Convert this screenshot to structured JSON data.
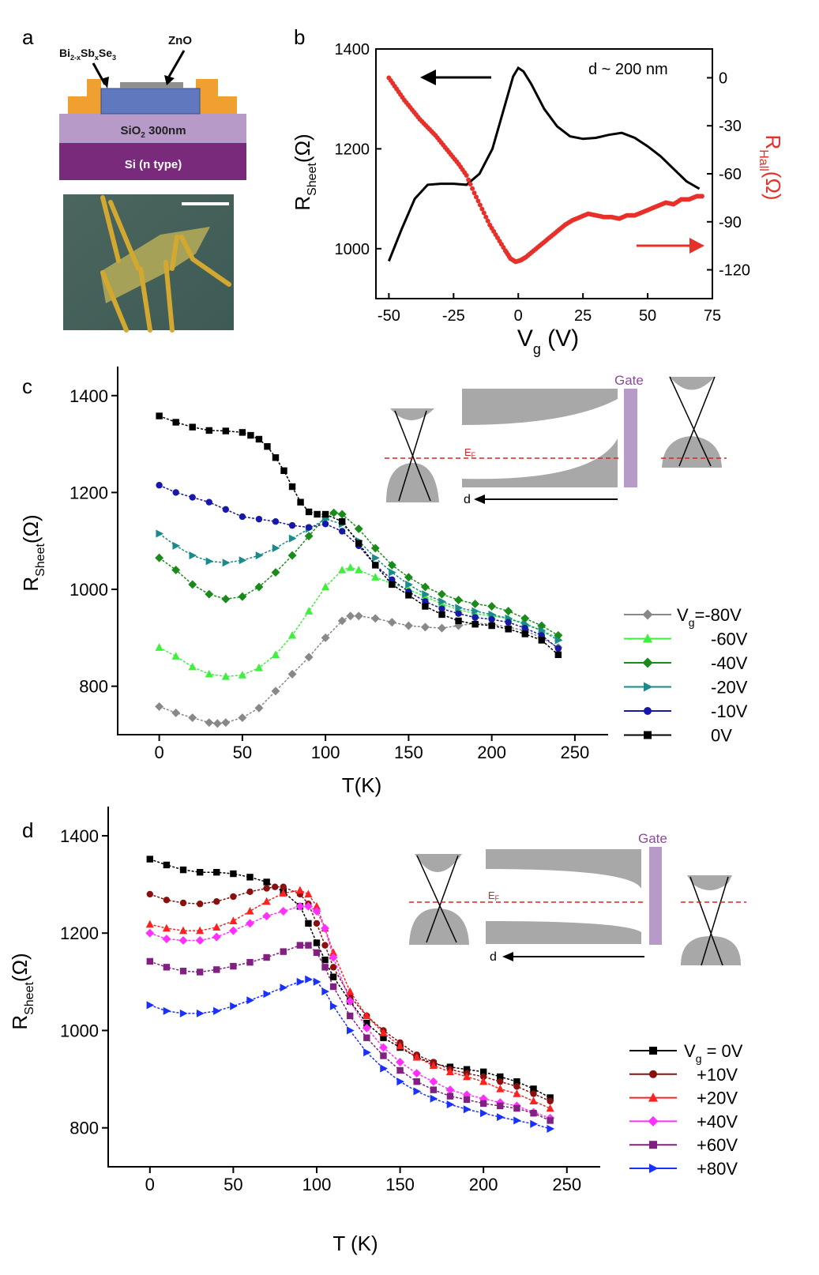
{
  "figure": {
    "panel_labels": [
      "a",
      "b",
      "c",
      "d"
    ]
  },
  "panel_a": {
    "schematic": {
      "material_label_main": "Bi",
      "material_label_sub1": "2-x",
      "material_label_mid": "Sb",
      "material_label_sub2": "x",
      "material_label_end": "Se",
      "material_label_sub3": "3",
      "zno_label": "ZnO",
      "sio2_label_pre": "SiO",
      "sio2_label_sub": "2",
      "sio2_label_post": " 300nm",
      "si_label": "Si (n type)",
      "colors": {
        "electrode": "#f0a030",
        "channel": "#5f78c0",
        "zno": "#8f8f8f",
        "sio2": "#b89ac8",
        "si": "#7a2a7a"
      }
    },
    "micrograph": {
      "background": "#4e6a62",
      "flake": "#b0a858",
      "leads": "#d2a830",
      "scale_bar": "#ffffff"
    }
  },
  "chart_data": [
    {
      "panel": "b",
      "type": "line",
      "annotation": "d ~ 200 nm",
      "xlabel_main": "V",
      "xlabel_sub": "g",
      "xlabel_unit": " (V)",
      "ylabel_main": "R",
      "ylabel_sub": "Sheet",
      "ylabel_unit": "(Ω)",
      "y2label_main": "R",
      "y2label_sub": "Hall",
      "y2label_unit": "(Ω)",
      "xlim": [
        -55,
        75
      ],
      "ylim": [
        900,
        1400
      ],
      "y2lim": [
        -138,
        18
      ],
      "xticks": [
        -50,
        -25,
        0,
        25,
        50,
        75
      ],
      "yticks": [
        1000,
        1200,
        1400
      ],
      "y2ticks": [
        0,
        -30,
        -60,
        -90,
        -120
      ],
      "series": [
        {
          "axis": "left",
          "color": "#000000",
          "style": "line",
          "x": [
            -50,
            -45,
            -40,
            -35,
            -30,
            -25,
            -20,
            -15,
            -10,
            -5,
            -2,
            0,
            2,
            5,
            10,
            15,
            20,
            25,
            30,
            35,
            40,
            45,
            50,
            55,
            60,
            65,
            70
          ],
          "y": [
            975,
            1040,
            1100,
            1128,
            1130,
            1130,
            1128,
            1150,
            1200,
            1290,
            1345,
            1362,
            1355,
            1330,
            1280,
            1245,
            1225,
            1220,
            1222,
            1228,
            1232,
            1222,
            1205,
            1185,
            1160,
            1135,
            1120
          ]
        },
        {
          "axis": "right",
          "color": "#e8302a",
          "style": "dots",
          "x": [
            -50,
            -47,
            -44,
            -41,
            -38,
            -35,
            -32,
            -29,
            -26,
            -23,
            -20,
            -17,
            -14,
            -11,
            -8,
            -5,
            -3,
            -1,
            1,
            3,
            6,
            9,
            12,
            15,
            18,
            21,
            24,
            27,
            30,
            33,
            36,
            39,
            42,
            45,
            48,
            51,
            54,
            57,
            60,
            63,
            66,
            69,
            71
          ],
          "y": [
            0,
            -7,
            -14,
            -20,
            -26,
            -31,
            -36,
            -42,
            -48,
            -54,
            -61,
            -72,
            -82,
            -92,
            -100,
            -108,
            -113,
            -115,
            -114,
            -112,
            -108,
            -104,
            -100,
            -96,
            -92,
            -89,
            -87,
            -85,
            -86,
            -87,
            -87,
            -88,
            -86,
            -86,
            -84,
            -82,
            -80,
            -78,
            -79,
            -76,
            -76,
            -74,
            -74
          ]
        }
      ]
    },
    {
      "panel": "c",
      "type": "line",
      "xlabel": "T(K)",
      "ylabel_main": "R",
      "ylabel_sub": "Sheet",
      "ylabel_unit": "(Ω)",
      "xlim": [
        -25,
        270
      ],
      "ylim": [
        700,
        1460
      ],
      "xticks": [
        0,
        50,
        100,
        150,
        200,
        250
      ],
      "yticks": [
        800,
        1000,
        1200,
        1400
      ],
      "legend_title_main": "V",
      "legend_title_sub": "g",
      "series": [
        {
          "label": "=-80V",
          "color": "#888888",
          "marker": "diamond",
          "x": [
            0,
            10,
            20,
            30,
            35,
            40,
            50,
            60,
            70,
            80,
            90,
            100,
            110,
            115,
            120,
            130,
            140,
            150,
            160,
            170,
            180,
            190,
            200,
            210,
            220,
            230,
            240
          ],
          "y": [
            758,
            745,
            735,
            725,
            723,
            725,
            735,
            755,
            790,
            825,
            860,
            900,
            935,
            945,
            945,
            940,
            932,
            925,
            922,
            920,
            925,
            930,
            928,
            922,
            915,
            900,
            880
          ]
        },
        {
          "label": "-60V",
          "color": "#3cf03c",
          "marker": "triangle-up",
          "x": [
            0,
            10,
            20,
            30,
            40,
            50,
            60,
            70,
            80,
            90,
            100,
            110,
            115,
            120,
            130,
            140,
            150,
            160,
            170,
            180,
            190,
            200,
            210,
            220,
            230,
            240
          ],
          "y": [
            880,
            862,
            840,
            825,
            820,
            823,
            838,
            865,
            905,
            955,
            1005,
            1040,
            1045,
            1040,
            1025,
            1012,
            1000,
            985,
            970,
            958,
            950,
            945,
            940,
            930,
            915,
            900
          ]
        },
        {
          "label": "-40V",
          "color": "#1a8a1a",
          "marker": "diamond",
          "x": [
            0,
            10,
            20,
            30,
            40,
            50,
            60,
            70,
            80,
            90,
            100,
            105,
            110,
            120,
            130,
            140,
            150,
            160,
            170,
            180,
            190,
            200,
            210,
            220,
            230,
            240
          ],
          "y": [
            1065,
            1040,
            1010,
            990,
            980,
            985,
            1005,
            1035,
            1070,
            1110,
            1150,
            1158,
            1155,
            1125,
            1085,
            1050,
            1025,
            1005,
            990,
            978,
            970,
            965,
            955,
            940,
            925,
            905
          ]
        },
        {
          "label": "-20V",
          "color": "#1a8a8a",
          "marker": "triangle-right",
          "x": [
            0,
            10,
            20,
            30,
            40,
            50,
            60,
            70,
            80,
            90,
            100,
            110,
            120,
            130,
            140,
            150,
            160,
            170,
            180,
            190,
            200,
            210,
            220,
            230,
            240
          ],
          "y": [
            1115,
            1090,
            1070,
            1058,
            1055,
            1060,
            1070,
            1085,
            1105,
            1125,
            1145,
            1135,
            1100,
            1065,
            1035,
            1010,
            990,
            975,
            962,
            955,
            948,
            940,
            928,
            915,
            895
          ]
        },
        {
          "label": "-10V",
          "color": "#1818a8",
          "marker": "circle",
          "x": [
            0,
            10,
            20,
            30,
            40,
            50,
            60,
            70,
            80,
            90,
            100,
            110,
            120,
            130,
            140,
            150,
            160,
            170,
            180,
            190,
            200,
            210,
            220,
            230,
            240
          ],
          "y": [
            1215,
            1200,
            1190,
            1180,
            1165,
            1150,
            1145,
            1140,
            1132,
            1128,
            1135,
            1120,
            1090,
            1050,
            1020,
            995,
            975,
            960,
            950,
            942,
            938,
            932,
            920,
            905,
            878
          ]
        },
        {
          "label": "0V",
          "color": "#000000",
          "marker": "square",
          "x": [
            0,
            10,
            20,
            30,
            40,
            50,
            55,
            60,
            65,
            70,
            75,
            80,
            85,
            90,
            95,
            100,
            110,
            120,
            130,
            140,
            150,
            160,
            170,
            180,
            190,
            200,
            210,
            220,
            230,
            240
          ],
          "y": [
            1358,
            1345,
            1335,
            1328,
            1327,
            1324,
            1318,
            1310,
            1295,
            1272,
            1245,
            1212,
            1180,
            1160,
            1155,
            1155,
            1140,
            1095,
            1050,
            1010,
            988,
            965,
            948,
            935,
            928,
            925,
            918,
            908,
            895,
            865
          ]
        }
      ]
    },
    {
      "panel": "d",
      "type": "line",
      "xlabel": "T (K)",
      "ylabel_main": "R",
      "ylabel_sub": "Sheet",
      "ylabel_unit": "(Ω)",
      "xlim": [
        -25,
        270
      ],
      "ylim": [
        720,
        1460
      ],
      "xticks": [
        0,
        50,
        100,
        150,
        200,
        250
      ],
      "yticks": [
        800,
        1000,
        1200,
        1400
      ],
      "legend_title_main": "V",
      "legend_title_sub": "g",
      "series": [
        {
          "label": " = 0V",
          "color": "#000000",
          "marker": "square",
          "x": [
            0,
            10,
            20,
            30,
            40,
            50,
            60,
            70,
            80,
            90,
            95,
            100,
            105,
            110,
            120,
            130,
            140,
            150,
            160,
            170,
            180,
            190,
            200,
            210,
            220,
            230,
            240
          ],
          "y": [
            1352,
            1340,
            1330,
            1325,
            1325,
            1322,
            1315,
            1305,
            1285,
            1255,
            1220,
            1180,
            1145,
            1110,
            1060,
            1015,
            985,
            965,
            945,
            932,
            925,
            920,
            915,
            905,
            895,
            880,
            862
          ]
        },
        {
          "label": "+10V",
          "color": "#8a1010",
          "marker": "circle",
          "x": [
            0,
            10,
            20,
            30,
            40,
            50,
            60,
            70,
            75,
            80,
            90,
            95,
            100,
            105,
            110,
            120,
            130,
            140,
            150,
            160,
            170,
            180,
            190,
            200,
            210,
            220,
            230,
            240
          ],
          "y": [
            1280,
            1268,
            1262,
            1260,
            1265,
            1275,
            1285,
            1292,
            1295,
            1295,
            1280,
            1260,
            1220,
            1175,
            1130,
            1070,
            1030,
            1000,
            975,
            950,
            935,
            920,
            912,
            905,
            895,
            885,
            870,
            855
          ]
        },
        {
          "label": "+20V",
          "color": "#ff2020",
          "marker": "triangle-up",
          "x": [
            0,
            10,
            20,
            30,
            40,
            50,
            60,
            70,
            80,
            90,
            95,
            100,
            105,
            110,
            120,
            130,
            140,
            150,
            160,
            170,
            180,
            190,
            200,
            210,
            220,
            230,
            240
          ],
          "y": [
            1218,
            1210,
            1205,
            1205,
            1212,
            1225,
            1245,
            1265,
            1282,
            1288,
            1280,
            1255,
            1210,
            1160,
            1080,
            1030,
            995,
            968,
            945,
            928,
            915,
            905,
            895,
            880,
            870,
            855,
            840
          ]
        },
        {
          "label": "+40V",
          "color": "#ff30ff",
          "marker": "diamond",
          "x": [
            0,
            10,
            20,
            30,
            40,
            50,
            60,
            70,
            80,
            90,
            95,
            100,
            105,
            110,
            120,
            130,
            140,
            150,
            160,
            170,
            180,
            190,
            200,
            210,
            220,
            230,
            240
          ],
          "y": [
            1200,
            1188,
            1185,
            1185,
            1192,
            1205,
            1220,
            1235,
            1245,
            1255,
            1255,
            1245,
            1210,
            1150,
            1060,
            1005,
            965,
            935,
            912,
            895,
            878,
            868,
            860,
            852,
            845,
            832,
            820
          ]
        },
        {
          "label": "+60V",
          "color": "#802080",
          "marker": "square",
          "x": [
            0,
            10,
            20,
            30,
            40,
            50,
            60,
            70,
            80,
            90,
            95,
            100,
            105,
            110,
            120,
            130,
            140,
            150,
            160,
            170,
            180,
            190,
            200,
            210,
            220,
            230,
            240
          ],
          "y": [
            1142,
            1130,
            1122,
            1120,
            1125,
            1132,
            1140,
            1150,
            1162,
            1175,
            1175,
            1160,
            1130,
            1090,
            1030,
            985,
            948,
            918,
            895,
            878,
            865,
            858,
            850,
            845,
            840,
            830,
            815
          ]
        },
        {
          "label": "+80V",
          "color": "#1a30ff",
          "marker": "triangle-right",
          "x": [
            0,
            10,
            20,
            30,
            40,
            50,
            60,
            70,
            80,
            90,
            95,
            100,
            105,
            110,
            120,
            130,
            140,
            150,
            160,
            170,
            180,
            190,
            200,
            210,
            220,
            230,
            240
          ],
          "y": [
            1052,
            1040,
            1035,
            1035,
            1040,
            1050,
            1062,
            1075,
            1088,
            1100,
            1105,
            1100,
            1080,
            1050,
            1000,
            955,
            922,
            895,
            875,
            860,
            848,
            838,
            830,
            822,
            815,
            808,
            798
          ]
        }
      ]
    }
  ],
  "insets": {
    "c": {
      "gate_label": "Gate",
      "ef_label_main": "E",
      "ef_label_sub": "F",
      "d_label": "d",
      "gate_color": "#b89ac8",
      "band_color": "#a8a8a8",
      "ef_color": "#e02020"
    },
    "d": {
      "gate_label": "Gate",
      "ef_label_main": "E",
      "ef_label_sub": "F",
      "d_label": "d",
      "gate_color": "#b89ac8",
      "band_color": "#a8a8a8",
      "ef_color": "#e02020"
    }
  }
}
